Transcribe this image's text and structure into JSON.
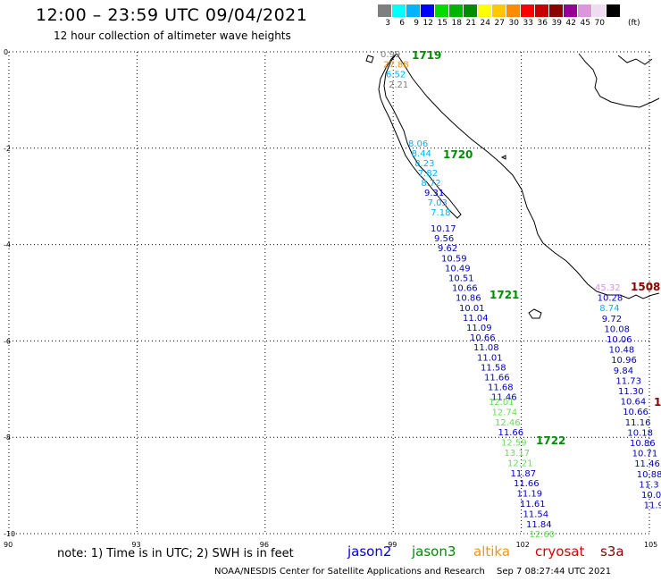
{
  "header": {
    "title": "12:00 – 23:59 UTC 09/04/2021",
    "subtitle": "12 hour collection of altimeter wave heights"
  },
  "color_scale": {
    "colors": [
      "#7f7f7f",
      "#00ffff",
      "#00b4ff",
      "#0000ff",
      "#00dc00",
      "#00b400",
      "#008c00",
      "#ffff00",
      "#ffc800",
      "#ff8c00",
      "#ff0000",
      "#c80000",
      "#8c0000",
      "#960096",
      "#dc96dc",
      "#f0dcf0",
      "#000000"
    ],
    "labels": [
      "3",
      "6",
      "9",
      "12",
      "15",
      "18",
      "21",
      "24",
      "27",
      "30",
      "33",
      "36",
      "39",
      "42",
      "45",
      "70"
    ],
    "unit": "(ft)"
  },
  "axes": {
    "y_ticks": [
      "0",
      "-2",
      "-4",
      "-6",
      "-8",
      "-10"
    ],
    "x_ticks": [
      "90",
      "93",
      "96",
      "99",
      "102",
      "105"
    ]
  },
  "tracks": [
    {
      "time": "1719",
      "color": "#008c00",
      "values": [
        {
          "v": "0.99",
          "c": "#7f7f7f"
        },
        {
          "v": "27.88",
          "c": "#ff8c00"
        },
        {
          "v": "6.52",
          "c": "#00b4ff"
        },
        {
          "v": "2.21",
          "c": "#7f7f7f"
        }
      ]
    },
    {
      "time": "1720",
      "color": "#008c00",
      "values": [
        {
          "v": "8.06",
          "c": "#00b4ff"
        },
        {
          "v": "8.44",
          "c": "#00b4ff"
        },
        {
          "v": "8.23",
          "c": "#00b4ff"
        },
        {
          "v": "7.82",
          "c": "#00b4ff"
        },
        {
          "v": "8.72",
          "c": "#00b4ff"
        },
        {
          "v": "9.31",
          "c": "#0000c8"
        },
        {
          "v": "7.03",
          "c": "#00b4ff"
        },
        {
          "v": "7.18",
          "c": "#00b4ff"
        }
      ]
    },
    {
      "time": "1721",
      "color": "#008c00",
      "values": [
        {
          "v": "10.17",
          "c": "#0000c8"
        },
        {
          "v": "9.56",
          "c": "#0000c8"
        },
        {
          "v": "9.62",
          "c": "#0000c8"
        },
        {
          "v": "10.59",
          "c": "#0000c8"
        },
        {
          "v": "10.49",
          "c": "#0000c8"
        },
        {
          "v": "10.51",
          "c": "#0000c8"
        },
        {
          "v": "10.66",
          "c": "#0000c8"
        },
        {
          "v": "10.86",
          "c": "#0000c8"
        },
        {
          "v": "10.01",
          "c": "#0000c8"
        },
        {
          "v": "11.04",
          "c": "#0000c8"
        },
        {
          "v": "11.09",
          "c": "#0000c8"
        },
        {
          "v": "10.66",
          "c": "#0000c8"
        },
        {
          "v": "11.08",
          "c": "#0000c8"
        },
        {
          "v": "11.01",
          "c": "#0000c8"
        },
        {
          "v": "11.58",
          "c": "#0000c8"
        },
        {
          "v": "11.66",
          "c": "#0000c8"
        },
        {
          "v": "11.68",
          "c": "#0000c8"
        },
        {
          "v": "11.46",
          "c": "#0000c8"
        }
      ]
    },
    {
      "time": "1722",
      "color": "#008c00",
      "values": [
        {
          "v": "12.01",
          "c": "#66dd55"
        },
        {
          "v": "12.74",
          "c": "#66dd55"
        },
        {
          "v": "12.46",
          "c": "#66dd55"
        },
        {
          "v": "11.66",
          "c": "#0000c8"
        },
        {
          "v": "12.59",
          "c": "#66dd55"
        },
        {
          "v": "13.17",
          "c": "#66dd55"
        },
        {
          "v": "12.21",
          "c": "#66dd55"
        },
        {
          "v": "11.87",
          "c": "#0000c8"
        },
        {
          "v": "11.66",
          "c": "#0000c8"
        },
        {
          "v": "11.19",
          "c": "#0000c8"
        },
        {
          "v": "11.61",
          "c": "#0000c8"
        },
        {
          "v": "11.54",
          "c": "#0000c8"
        },
        {
          "v": "11.84",
          "c": "#0000c8"
        },
        {
          "v": "12.60",
          "c": "#66dd55"
        }
      ]
    },
    {
      "time": "1508",
      "color": "#8c0000",
      "values": [
        {
          "v": "45.32",
          "c": "#dc96dc"
        },
        {
          "v": "10.28",
          "c": "#0000c8"
        },
        {
          "v": "8.74",
          "c": "#00b4ff"
        },
        {
          "v": "9.72",
          "c": "#0000c8"
        },
        {
          "v": "10.08",
          "c": "#0000c8"
        },
        {
          "v": "10.06",
          "c": "#0000c8"
        },
        {
          "v": "10.48",
          "c": "#0000c8"
        },
        {
          "v": "10.96",
          "c": "#0000c8"
        },
        {
          "v": "9.84",
          "c": "#0000c8"
        },
        {
          "v": "11.73",
          "c": "#0000c8"
        },
        {
          "v": "11.30",
          "c": "#0000c8"
        },
        {
          "v": "10.64",
          "c": "#0000c8"
        },
        {
          "v": "10.66",
          "c": "#0000c8"
        },
        {
          "v": "11.16",
          "c": "#0000c8"
        },
        {
          "v": "10.18",
          "c": "#0000c8"
        },
        {
          "v": "10.86",
          "c": "#0000c8"
        },
        {
          "v": "10.71",
          "c": "#0000c8"
        },
        {
          "v": "11.46",
          "c": "#0000c8"
        },
        {
          "v": "10.88",
          "c": "#0000c8"
        },
        {
          "v": "11.3",
          "c": "#0000c8"
        },
        {
          "v": "10.0",
          "c": "#0000c8"
        },
        {
          "v": "11.9",
          "c": "#0000c8"
        }
      ]
    }
  ],
  "edge_time": "1",
  "footer": {
    "note": "note:  1) Time is in UTC;  2) SWH is in feet",
    "legend": [
      {
        "label": "jason2",
        "color": "#0000dc"
      },
      {
        "label": "jason3",
        "color": "#008c00"
      },
      {
        "label": "altika",
        "color": "#ff9600"
      },
      {
        "label": "cryosat",
        "color": "#dc0000"
      },
      {
        "label": "s3a",
        "color": "#8c0000"
      }
    ],
    "credit": "NOAA/NESDIS Center for Satellite Applications and Research",
    "timestamp": "Sep  7 08:27:44 UTC 2021"
  }
}
